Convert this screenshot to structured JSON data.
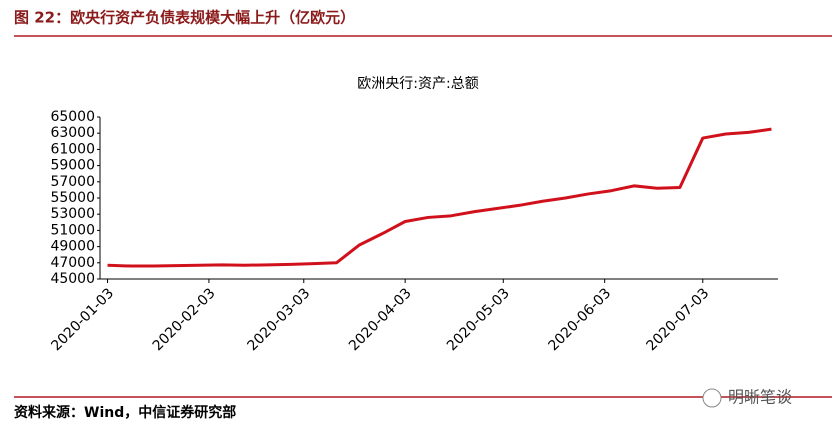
{
  "header": {
    "title": "图 22：欧央行资产负债表规模大幅上升（亿欧元）"
  },
  "chart_data": {
    "type": "line",
    "title": "欧洲央行:资产:总额",
    "x": [
      "2020-01-03",
      "2020-01-10",
      "2020-01-17",
      "2020-01-24",
      "2020-01-31",
      "2020-02-07",
      "2020-02-14",
      "2020-02-21",
      "2020-02-28",
      "2020-03-06",
      "2020-03-13",
      "2020-03-20",
      "2020-03-27",
      "2020-04-03",
      "2020-04-10",
      "2020-04-17",
      "2020-04-24",
      "2020-05-01",
      "2020-05-08",
      "2020-05-15",
      "2020-05-22",
      "2020-05-29",
      "2020-06-05",
      "2020-06-12",
      "2020-06-19",
      "2020-06-26",
      "2020-07-03",
      "2020-07-10",
      "2020-07-17",
      "2020-07-24"
    ],
    "series": [
      {
        "name": "欧洲央行:资产:总额",
        "color": "#d0111b",
        "values": [
          46700,
          46600,
          46600,
          46650,
          46700,
          46750,
          46700,
          46750,
          46800,
          46900,
          47000,
          49200,
          50600,
          52100,
          52600,
          52800,
          53300,
          53700,
          54100,
          54600,
          55000,
          55500,
          55900,
          56500,
          56200,
          56300,
          62400,
          62900,
          63100,
          63500
        ]
      }
    ],
    "xlim": [
      "2020-01-01",
      "2020-07-26"
    ],
    "xticks": [
      "2020-01-03",
      "2020-02-03",
      "2020-03-03",
      "2020-04-03",
      "2020-05-03",
      "2020-06-03",
      "2020-07-03"
    ],
    "ylim": [
      45000,
      65000
    ],
    "yticks": [
      45000,
      47000,
      49000,
      51000,
      53000,
      55000,
      57000,
      59000,
      61000,
      63000,
      65000
    ],
    "grid": false
  },
  "footer": {
    "source": "资料来源：Wind，中信证券研究部",
    "watermark": "明晰笔谈"
  }
}
